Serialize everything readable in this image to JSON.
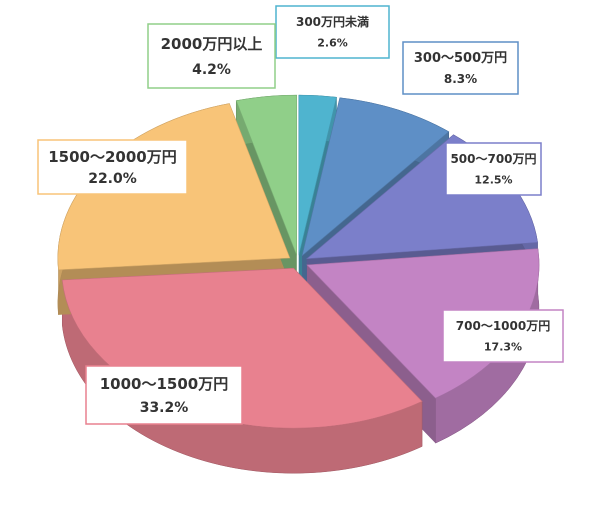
{
  "chart_data": {
    "type": "pie",
    "categories": [
      "300万円未満",
      "300〜500万円",
      "500〜700万円",
      "700〜1000万円",
      "1000〜1500万円",
      "1500〜2000万円",
      "2000万円以上"
    ],
    "values": [
      2.6,
      8.3,
      12.5,
      17.3,
      33.2,
      22.0,
      4.2
    ],
    "value_labels": [
      "2.6%",
      "8.3%",
      "12.5%",
      "17.3%",
      "33.2%",
      "22.0%",
      "4.2%"
    ],
    "colors": [
      "#4fb4cf",
      "#5e8fc6",
      "#7b7fca",
      "#c384c4",
      "#e8818f",
      "#f8c478",
      "#90cf89"
    ]
  }
}
